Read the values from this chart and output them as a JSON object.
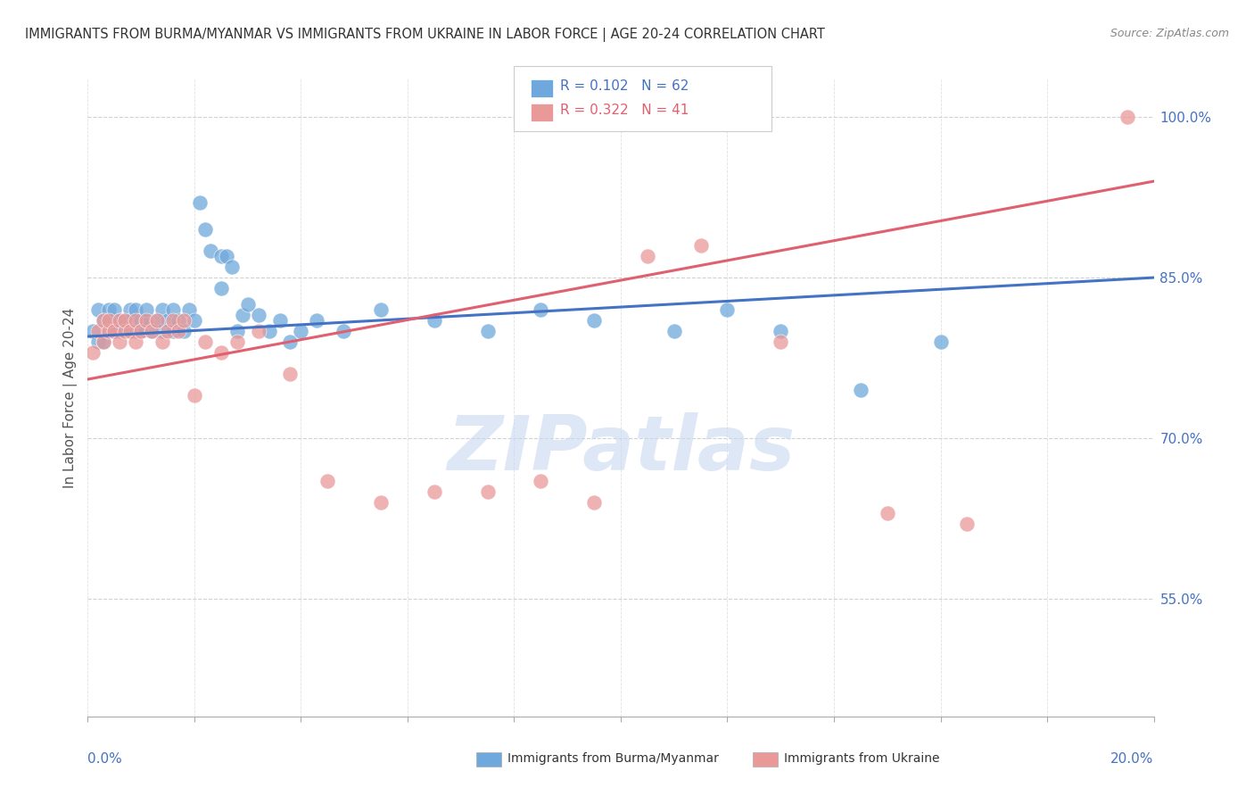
{
  "title": "IMMIGRANTS FROM BURMA/MYANMAR VS IMMIGRANTS FROM UKRAINE IN LABOR FORCE | AGE 20-24 CORRELATION CHART",
  "source": "Source: ZipAtlas.com",
  "ylabel": "In Labor Force | Age 20-24",
  "y_tick_values": [
    0.55,
    0.7,
    0.85,
    1.0
  ],
  "x_min": 0.0,
  "x_max": 0.2,
  "y_min": 0.44,
  "y_max": 1.035,
  "color_blue": "#6fa8dc",
  "color_blue_line": "#4472c4",
  "color_pink": "#ea9999",
  "color_pink_line": "#e06070",
  "legend_blue_R": "0.102",
  "legend_blue_N": "62",
  "legend_pink_R": "0.322",
  "legend_pink_N": "41",
  "blue_line_y0": 0.795,
  "blue_line_y1": 0.85,
  "pink_line_y0": 0.755,
  "pink_line_y1": 0.94,
  "watermark_text": "ZIPatlas",
  "watermark_color": "#c8d8f0",
  "background_color": "#ffffff",
  "grid_color": "#cccccc",
  "axis_color": "#4472c4",
  "title_color": "#333333",
  "source_color": "#888888",
  "ylabel_color": "#555555",
  "blue_x": [
    0.001,
    0.002,
    0.002,
    0.003,
    0.003,
    0.004,
    0.004,
    0.004,
    0.005,
    0.005,
    0.005,
    0.006,
    0.006,
    0.007,
    0.007,
    0.007,
    0.008,
    0.008,
    0.009,
    0.009,
    0.01,
    0.01,
    0.011,
    0.011,
    0.012,
    0.013,
    0.014,
    0.014,
    0.015,
    0.016,
    0.016,
    0.017,
    0.018,
    0.019,
    0.02,
    0.021,
    0.022,
    0.023,
    0.025,
    0.025,
    0.026,
    0.027,
    0.028,
    0.029,
    0.03,
    0.032,
    0.034,
    0.036,
    0.038,
    0.04,
    0.043,
    0.048,
    0.055,
    0.065,
    0.075,
    0.085,
    0.095,
    0.11,
    0.12,
    0.13,
    0.145,
    0.16
  ],
  "blue_y": [
    0.8,
    0.82,
    0.79,
    0.81,
    0.79,
    0.81,
    0.8,
    0.82,
    0.81,
    0.8,
    0.82,
    0.8,
    0.81,
    0.8,
    0.81,
    0.8,
    0.82,
    0.81,
    0.8,
    0.82,
    0.81,
    0.8,
    0.81,
    0.82,
    0.8,
    0.81,
    0.8,
    0.82,
    0.81,
    0.8,
    0.82,
    0.81,
    0.8,
    0.82,
    0.81,
    0.92,
    0.895,
    0.875,
    0.87,
    0.84,
    0.87,
    0.86,
    0.8,
    0.815,
    0.825,
    0.815,
    0.8,
    0.81,
    0.79,
    0.8,
    0.81,
    0.8,
    0.82,
    0.81,
    0.8,
    0.82,
    0.81,
    0.8,
    0.82,
    0.8,
    0.745,
    0.79
  ],
  "pink_x": [
    0.001,
    0.002,
    0.003,
    0.003,
    0.004,
    0.004,
    0.005,
    0.006,
    0.006,
    0.007,
    0.007,
    0.008,
    0.009,
    0.009,
    0.01,
    0.011,
    0.012,
    0.013,
    0.014,
    0.015,
    0.016,
    0.017,
    0.018,
    0.02,
    0.022,
    0.025,
    0.028,
    0.032,
    0.038,
    0.045,
    0.055,
    0.065,
    0.075,
    0.085,
    0.095,
    0.105,
    0.115,
    0.13,
    0.15,
    0.165,
    0.195
  ],
  "pink_y": [
    0.78,
    0.8,
    0.81,
    0.79,
    0.8,
    0.81,
    0.8,
    0.81,
    0.79,
    0.8,
    0.81,
    0.8,
    0.81,
    0.79,
    0.8,
    0.81,
    0.8,
    0.81,
    0.79,
    0.8,
    0.81,
    0.8,
    0.81,
    0.74,
    0.79,
    0.78,
    0.79,
    0.8,
    0.76,
    0.66,
    0.64,
    0.65,
    0.65,
    0.66,
    0.64,
    0.87,
    0.88,
    0.79,
    0.63,
    0.62,
    1.0
  ]
}
